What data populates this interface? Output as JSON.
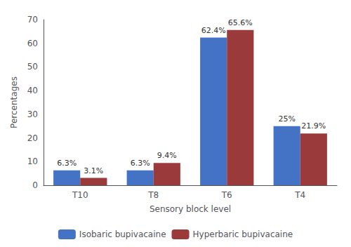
{
  "chart_data": {
    "type": "bar",
    "categories": [
      "T10",
      "T8",
      "T6",
      "T4"
    ],
    "series": [
      {
        "name": "Isobaric bupivacaine",
        "color": "#4472C4",
        "values": [
          6.3,
          6.3,
          62.4,
          25.0
        ],
        "value_labels": [
          "6.3%",
          "6.3%",
          "62.4%",
          "25%"
        ]
      },
      {
        "name": "Hyperbaric bupivacaine",
        "color": "#9B3A3A",
        "values": [
          3.1,
          9.4,
          65.6,
          21.9
        ],
        "value_labels": [
          "3.1%",
          "9.4%",
          "65.6%",
          "21.9%"
        ]
      }
    ],
    "xlabel": "Sensory block level",
    "ylabel": "Percentages",
    "ylim": [
      0,
      70
    ],
    "yticks": [
      0,
      10,
      20,
      30,
      40,
      50,
      60,
      70
    ],
    "grid": false,
    "legend": "bottom"
  }
}
